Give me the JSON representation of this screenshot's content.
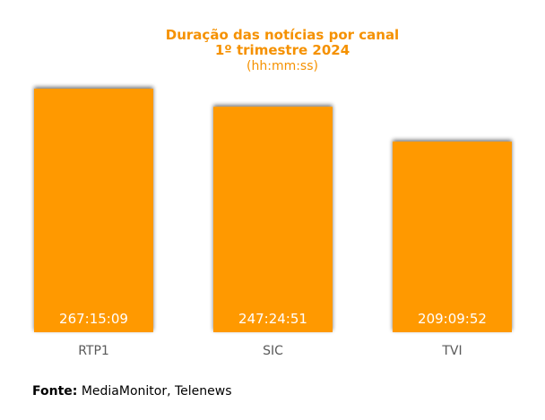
{
  "chart_data": {
    "type": "bar",
    "title": "Duração das notícias por canal",
    "title_line2": "1º trimestre 2024",
    "subtitle": "(hh:mm:ss)",
    "categories": [
      "RTP1",
      "SIC",
      "TVI"
    ],
    "values_hours": [
      267.2525,
      247.4142,
      209.1644
    ],
    "labels": [
      "267:15:09",
      "247:24:51",
      "209:09:52"
    ],
    "ylim": [
      0,
      284
    ],
    "xlabel": "",
    "ylabel": "",
    "grid": false,
    "legend": false,
    "color": "#ff9900"
  },
  "source": {
    "label": "Fonte:",
    "text": " MediaMonitor, Telenews"
  }
}
